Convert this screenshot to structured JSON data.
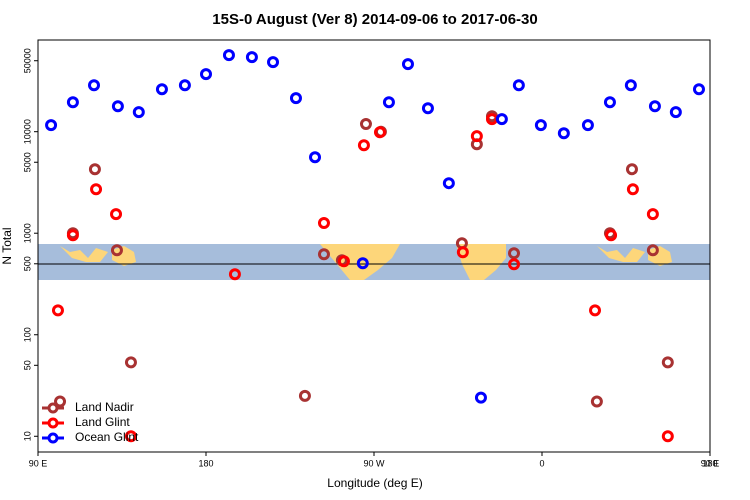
{
  "chart_data": {
    "type": "scatter",
    "title": "15S-0 August (Ver 8)   2014-09-06 to 2017-06-30",
    "x_label": "Longitude (deg E)",
    "y_label": "N Total",
    "log_y": true,
    "grid": false,
    "legend_position": "lower left",
    "xlim": [
      90,
      450
    ],
    "xticks": [
      {
        "value": 90,
        "label": "90 E"
      },
      {
        "value": 180,
        "label": "180"
      },
      {
        "value": 270,
        "label": "90 W"
      },
      {
        "value": 360,
        "label": "0"
      },
      {
        "value": 450,
        "label": "90 E"
      },
      {
        "value": 540,
        "label": "180"
      }
    ],
    "ylim": [
      7,
      80000
    ],
    "yticks": [
      10,
      50,
      100,
      500,
      1000,
      5000,
      10000,
      50000
    ],
    "series": [
      {
        "name": "Land Nadir",
        "color": "#a83232",
        "x": [
          101.8,
          108.7,
          120.5,
          132.3,
          139.8,
          233,
          243.2,
          252.8,
          265.7,
          273.7,
          317.1,
          325.1,
          333.2,
          345,
          389.4,
          396.4,
          408.2,
          419.4,
          427.4
        ],
        "values": [
          22,
          1000,
          4270,
          680,
          53.5,
          25,
          621,
          542,
          11900,
          10000,
          796,
          7530,
          14200,
          635,
          22,
          1000,
          4270,
          680,
          53.5
        ]
      },
      {
        "name": "Land Glint",
        "color": "#ff0000",
        "x": [
          100.7,
          108.7,
          121.1,
          131.8,
          139.8,
          195.5,
          243.2,
          253.9,
          264.6,
          273.2,
          317.6,
          325.1,
          333.2,
          345,
          388.4,
          397,
          408.7,
          419.4,
          427.4
        ],
        "values": [
          174,
          955,
          2710,
          1540,
          10,
          394,
          1260,
          530,
          7360,
          9880,
          650,
          9040,
          13300,
          495,
          174,
          955,
          2710,
          1540,
          10
        ]
      },
      {
        "name": "Ocean Glint",
        "color": "#0000ff",
        "x": [
          97,
          108.7,
          120,
          132.8,
          144,
          156.4,
          168.7,
          180,
          192.3,
          204.6,
          215.9,
          228.2,
          238.4,
          264,
          278,
          288.2,
          298.9,
          310.1,
          327.3,
          338.5,
          347.6,
          359.4,
          371.7,
          384.6,
          396.4,
          407.6,
          420.5,
          431.7,
          444.1
        ],
        "values": [
          11600,
          19500,
          28700,
          17800,
          15600,
          26200,
          28700,
          36900,
          56700,
          54200,
          48400,
          21400,
          5600,
          506,
          19500,
          46300,
          17000,
          3110,
          24,
          13300,
          28700,
          11600,
          9660,
          11600,
          19500,
          28700,
          17800,
          15600,
          26200
        ]
      }
    ]
  }
}
